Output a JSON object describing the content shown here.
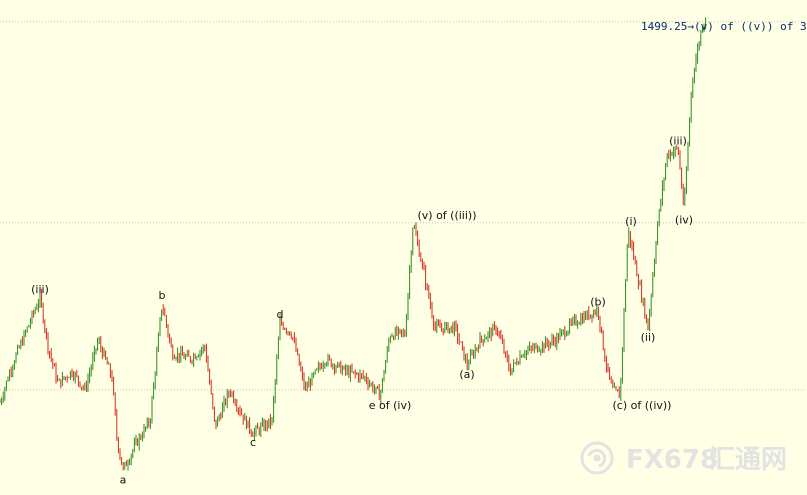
{
  "chart_data": {
    "type": "candlestick",
    "price_label": "1499.25",
    "price_label_suffix": "→(v) of ((v)) of 3",
    "annotations": [
      {
        "text": "(iii)",
        "x": 40,
        "y": 1453
      },
      {
        "text": "a",
        "x": 123,
        "y": 1425
      },
      {
        "text": "b",
        "x": 162,
        "y": 1452
      },
      {
        "text": "c",
        "x": 253,
        "y": 1431
      },
      {
        "text": "d",
        "x": 280,
        "y": 1449
      },
      {
        "text": "e of (iv)",
        "x": 390,
        "y": 1437
      },
      {
        "text": "(v) of ((iii))",
        "x": 447,
        "y": 1465
      },
      {
        "text": "(a)",
        "x": 467,
        "y": 1442
      },
      {
        "text": "(b)",
        "x": 598,
        "y": 1451
      },
      {
        "text": "(c) of ((iv))",
        "x": 642,
        "y": 1437
      },
      {
        "text": "(i)",
        "x": 631,
        "y": 1464
      },
      {
        "text": "(ii)",
        "x": 648,
        "y": 1448
      },
      {
        "text": "(iii)",
        "x": 678,
        "y": 1477
      },
      {
        "text": "(iv)",
        "x": 684,
        "y": 1467
      }
    ],
    "horizontal_levels": [
      1497.5,
      1465,
      1438
    ],
    "ylim": [
      1421,
      1501
    ],
    "xlim": [
      0,
      807
    ],
    "up_color": "#2E8B1E",
    "down_color": "#D42A1A"
  },
  "watermark": {
    "brand": "FX678",
    "chinese": "汇通网",
    "color": "#E3E3E3"
  }
}
